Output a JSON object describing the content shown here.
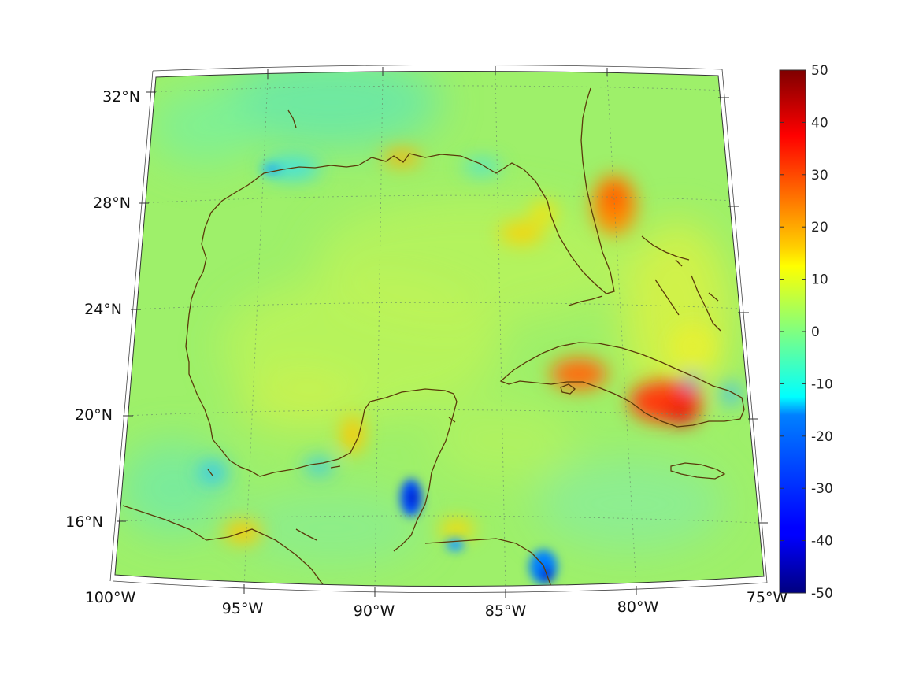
{
  "map": {
    "projection": "conic",
    "lat_ticks": [
      {
        "label": "32°N",
        "value": 32
      },
      {
        "label": "28°N",
        "value": 28
      },
      {
        "label": "24°N",
        "value": 24
      },
      {
        "label": "20°N",
        "value": 20
      },
      {
        "label": "16°N",
        "value": 16
      }
    ],
    "lon_ticks": [
      {
        "label": "100°W",
        "value": -100
      },
      {
        "label": "95°W",
        "value": -95
      },
      {
        "label": "90°W",
        "value": -90
      },
      {
        "label": "85°W",
        "value": -85
      },
      {
        "label": "80°W",
        "value": -80
      },
      {
        "label": "75°W",
        "value": -75
      }
    ],
    "lat_range": [
      14,
      33
    ],
    "lon_range": [
      -100,
      -75
    ],
    "grid": true,
    "field_colormap": "jet",
    "coastline_color": "#5a3a0a"
  },
  "colorbar": {
    "min": -50,
    "max": 50,
    "ticks": [
      "50",
      "40",
      "30",
      "20",
      "10",
      "0",
      "-10",
      "-20",
      "-30",
      "-40",
      "-50"
    ]
  }
}
